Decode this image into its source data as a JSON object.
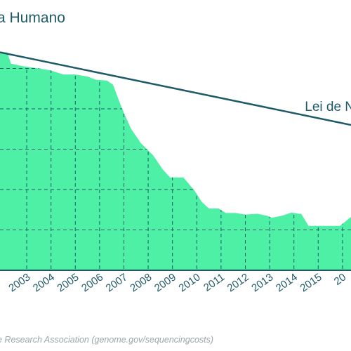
{
  "chart_data": {
    "type": "area",
    "title": "a Humano",
    "source": "e Research Association (genome.gov/sequencingcosts)",
    "xlabel": "",
    "ylabel": "",
    "x_ticks": [
      "2003",
      "2004",
      "2005",
      "2006",
      "2007",
      "2008",
      "2009",
      "2010",
      "2011",
      "2012",
      "2013",
      "2014",
      "2015",
      "20"
    ],
    "xlim": [
      2001.9,
      2016.35
    ],
    "ylim": [
      0,
      6
    ],
    "y_gridlines": [
      1,
      2,
      3,
      4,
      5
    ],
    "grid": true,
    "series": [
      {
        "kind": "area",
        "color": "#4ef0a5",
        "x": [
          2001.9,
          2002.2,
          2002.35,
          2002.9,
          2003.5,
          2004.0,
          2004.5,
          2005.0,
          2005.5,
          2005.85,
          2006.3,
          2006.55,
          2006.8,
          2007.0,
          2007.3,
          2007.7,
          2008.2,
          2008.6,
          2008.9,
          2009.45,
          2009.9,
          2010.2,
          2010.5,
          2010.9,
          2011.2,
          2011.6,
          2012.0,
          2012.5,
          2012.9,
          2013.1,
          2013.5,
          2013.9,
          2014.2,
          2014.3,
          2014.6,
          2015.1,
          2015.55,
          2015.9,
          2016.1,
          2016.35
        ],
        "y": [
          5.4,
          5.4,
          5.12,
          5.05,
          5.0,
          4.95,
          4.85,
          4.85,
          4.8,
          4.72,
          4.7,
          4.6,
          4.2,
          3.9,
          3.5,
          3.15,
          2.85,
          2.5,
          2.3,
          2.3,
          1.98,
          1.7,
          1.53,
          1.53,
          1.42,
          1.42,
          1.38,
          1.4,
          1.35,
          1.3,
          1.35,
          1.43,
          1.4,
          1.4,
          1.1,
          1.1,
          1.1,
          1.1,
          1.2,
          1.32
        ]
      },
      {
        "kind": "line",
        "color": "#1f5a68",
        "x": [
          2001.9,
          2016.35
        ],
        "y": [
          5.4,
          3.6
        ]
      }
    ],
    "annotations": [
      {
        "text": "Lei de N",
        "x": 2014.45,
        "y": 3.95
      }
    ]
  }
}
